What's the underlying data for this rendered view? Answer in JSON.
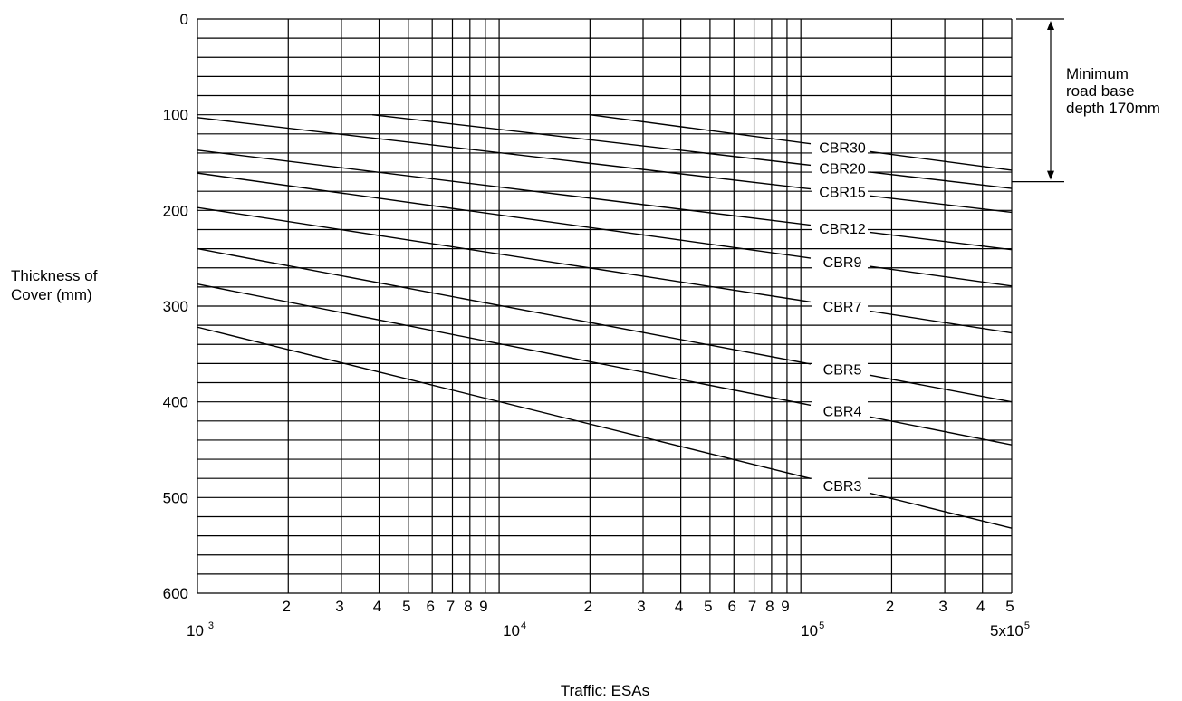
{
  "chart_data": {
    "type": "line",
    "title": "",
    "ylabel_lines": [
      "Thickness of",
      "Cover (mm)"
    ],
    "xlabel": "Traffic: ESAs",
    "x_scale": "log",
    "xlim": [
      1000,
      500000
    ],
    "ylim": [
      0,
      600
    ],
    "y_inverted": true,
    "y_ticks": [
      0,
      100,
      200,
      300,
      400,
      500,
      600
    ],
    "x_minor_ticks": [
      {
        "value": 2000,
        "label": "2"
      },
      {
        "value": 3000,
        "label": "3"
      },
      {
        "value": 4000,
        "label": "4"
      },
      {
        "value": 5000,
        "label": "5"
      },
      {
        "value": 6000,
        "label": "6"
      },
      {
        "value": 7000,
        "label": "7"
      },
      {
        "value": 8000,
        "label": "8"
      },
      {
        "value": 9000,
        "label": "9"
      },
      {
        "value": 20000,
        "label": "2"
      },
      {
        "value": 30000,
        "label": "3"
      },
      {
        "value": 40000,
        "label": "4"
      },
      {
        "value": 50000,
        "label": "5"
      },
      {
        "value": 60000,
        "label": "6"
      },
      {
        "value": 70000,
        "label": "7"
      },
      {
        "value": 80000,
        "label": "8"
      },
      {
        "value": 90000,
        "label": "9"
      },
      {
        "value": 200000,
        "label": "2"
      },
      {
        "value": 300000,
        "label": "3"
      },
      {
        "value": 400000,
        "label": "4"
      },
      {
        "value": 500000,
        "label": "5"
      }
    ],
    "x_major_labels": [
      {
        "value": 1000,
        "base": "10",
        "sup": "3"
      },
      {
        "value": 10000,
        "base": "10",
        "sup": "4"
      },
      {
        "value": 100000,
        "base": "10",
        "sup": "5"
      },
      {
        "value": 500000,
        "base": "5x10",
        "sup": "5"
      }
    ],
    "grid": true,
    "annotation": {
      "lines": [
        "Minimum",
        "road base",
        "depth 170mm"
      ],
      "range": [
        0,
        170
      ]
    },
    "series": [
      {
        "name": "CBR30",
        "x": [
          20000,
          500000
        ],
        "y": [
          100,
          158
        ]
      },
      {
        "name": "CBR20",
        "x": [
          3800,
          500000
        ],
        "y": [
          100,
          177
        ]
      },
      {
        "name": "CBR15",
        "x": [
          1000,
          500000
        ],
        "y": [
          103,
          202
        ]
      },
      {
        "name": "CBR12",
        "x": [
          1000,
          500000
        ],
        "y": [
          137,
          241
        ]
      },
      {
        "name": "CBR9",
        "x": [
          1000,
          500000
        ],
        "y": [
          161,
          279
        ]
      },
      {
        "name": "CBR7",
        "x": [
          1000,
          500000
        ],
        "y": [
          197,
          328
        ]
      },
      {
        "name": "CBR5",
        "x": [
          1000,
          500000
        ],
        "y": [
          240,
          400
        ]
      },
      {
        "name": "CBR4",
        "x": [
          1000,
          500000
        ],
        "y": [
          277,
          445
        ]
      },
      {
        "name": "CBR3",
        "x": [
          1000,
          500000
        ],
        "y": [
          322,
          532
        ]
      }
    ]
  }
}
